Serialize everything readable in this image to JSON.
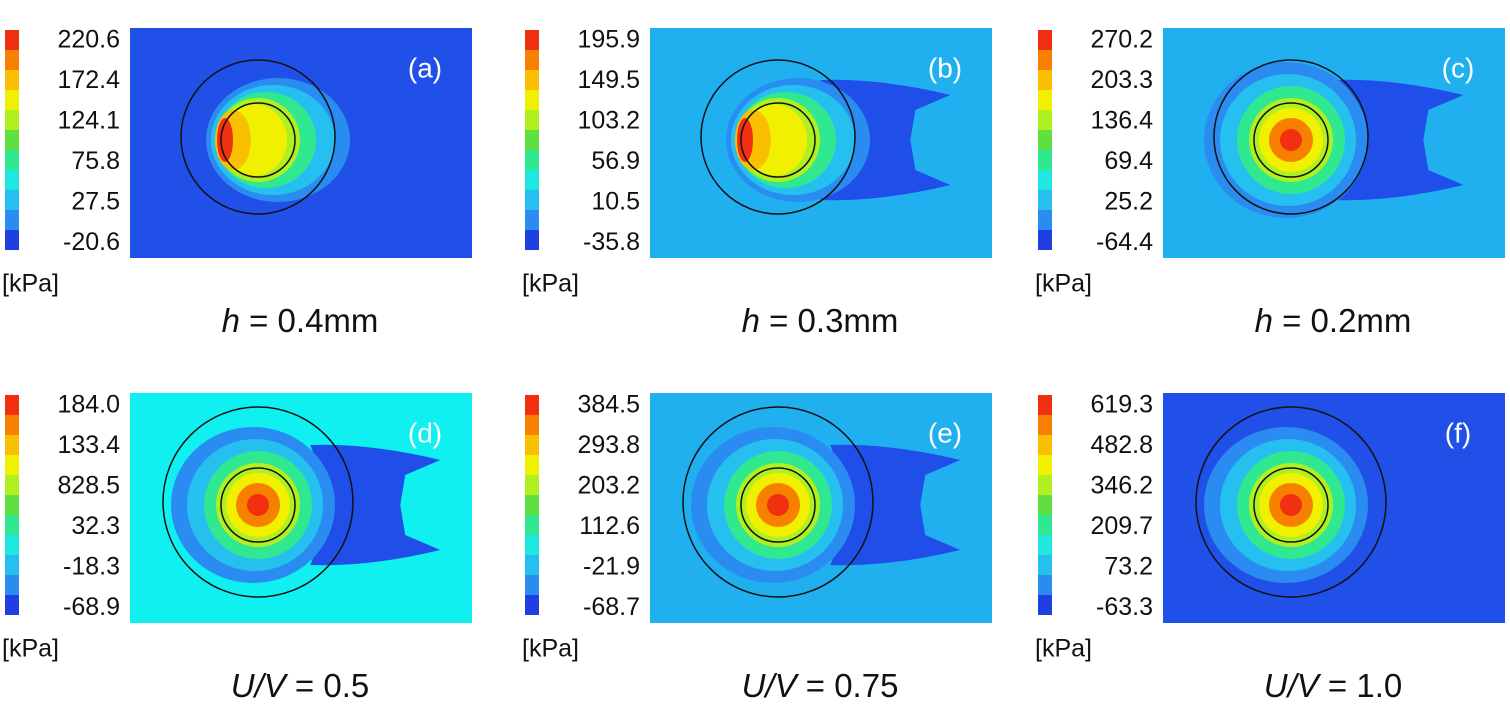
{
  "panels": [
    {
      "label": "(a)",
      "ticks": [
        "220.6",
        "172.4",
        "124.1",
        "75.8",
        "27.5",
        "-20.6"
      ],
      "unit": "[kPa]",
      "param": "h",
      "value": "= 0.4mm",
      "background": "#2050e8",
      "wake": false,
      "edge": true
    },
    {
      "label": "(b)",
      "ticks": [
        "195.9",
        "149.5",
        "103.2",
        "56.9",
        "10.5",
        "-35.8"
      ],
      "unit": "[kPa]",
      "param": "h",
      "value": "= 0.3mm",
      "background": "#20b0f0",
      "wake": true,
      "edge": true
    },
    {
      "label": "(c)",
      "ticks": [
        "270.2",
        "203.3",
        "136.4",
        "69.4",
        "25.2",
        "-64.4"
      ],
      "unit": "[kPa]",
      "param": "h",
      "value": "= 0.2mm",
      "background": "#20b0f0",
      "wake": true,
      "edge": false
    },
    {
      "label": "(d)",
      "ticks": [
        "184.0",
        "133.4",
        "828.5",
        "32.3",
        "-18.3",
        "-68.9"
      ],
      "unit": "[kPa]",
      "param": "U/V",
      "value": "= 0.5",
      "background": "#10f0f0",
      "wake": true,
      "edge": false
    },
    {
      "label": "(e)",
      "ticks": [
        "384.5",
        "293.8",
        "203.2",
        "112.6",
        "-21.9",
        "-68.7"
      ],
      "unit": "[kPa]",
      "param": "U/V",
      "value": "= 0.75",
      "background": "#20b0f0",
      "wake": true,
      "edge": false
    },
    {
      "label": "(f)",
      "ticks": [
        "619.3",
        "482.8",
        "346.2",
        "209.7",
        "73.2",
        "-63.3"
      ],
      "unit": "[kPa]",
      "param": "U/V",
      "value": "= 1.0",
      "background": "#2050e8",
      "wake": false,
      "edge": false
    }
  ]
}
